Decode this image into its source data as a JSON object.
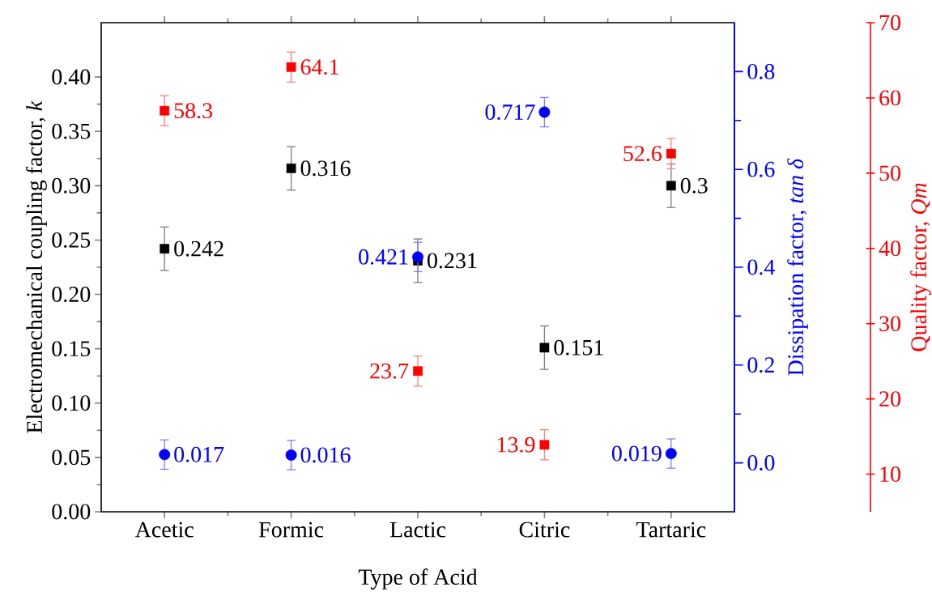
{
  "chart_data": {
    "type": "scatter",
    "xlabel": "Type of Acid",
    "ylabel": "Electromechanical coupling factor, *k*",
    "y2label": "Dissipation factor, *tan δ*",
    "y3label": "Quality factor, *Qm*",
    "categories": [
      "Acetic",
      "Formic",
      "Lactic",
      "Citric",
      "Tartaric"
    ],
    "ylim": [
      0,
      0.45
    ],
    "yticks": [
      {
        "value": 0,
        "label": "0.00"
      },
      {
        "value": 0.05,
        "label": "0.05"
      },
      {
        "value": 0.1,
        "label": "0.10"
      },
      {
        "value": 0.15,
        "label": "0.15"
      },
      {
        "value": 0.2,
        "label": "0.20"
      },
      {
        "value": 0.25,
        "label": "0.25"
      },
      {
        "value": 0.3,
        "label": "0.30"
      },
      {
        "value": 0.35,
        "label": "0.35"
      },
      {
        "value": 0.4,
        "label": "0.40"
      }
    ],
    "y2lim": [
      -0.1,
      0.9
    ],
    "y2ticks": [
      {
        "value": 0,
        "label": "0.0"
      },
      {
        "value": 0.2,
        "label": "0.2"
      },
      {
        "value": 0.4,
        "label": "0.4"
      },
      {
        "value": 0.6,
        "label": "0.6"
      },
      {
        "value": 0.8,
        "label": "0.8"
      }
    ],
    "y3lim": [
      5,
      70
    ],
    "y3ticks": [
      10,
      20,
      30,
      40,
      50,
      60,
      70
    ],
    "grid": false,
    "series": [
      {
        "color": "#000000",
        "marker": "square",
        "values": [
          0.242,
          0.316,
          0.231,
          0.151,
          0.3
        ],
        "errors": [
          0.02,
          0.02,
          0.02,
          0.02,
          0.02
        ],
        "value_labels": [
          "0.242",
          "0.316",
          "0.231",
          "0.151",
          "0.3"
        ]
      },
      {
        "color": "#0000ff",
        "marker": "circle",
        "axis": "y2",
        "values": [
          0.017,
          0.016,
          0.421,
          0.717,
          0.019
        ],
        "errors": [
          0.03,
          0.03,
          0.03,
          0.03,
          0.03
        ],
        "value_labels": [
          "0.017",
          "0.016",
          "0.421",
          "0.717",
          "0.019"
        ]
      },
      {
        "color": "#ff0000",
        "marker": "square",
        "axis": "y3",
        "values": [
          58.3,
          64.1,
          23.7,
          13.9,
          52.6
        ],
        "errors": [
          2,
          2,
          2,
          2,
          2
        ],
        "value_labels": [
          "58.3",
          "64.1",
          "23.7",
          "13.9",
          "52.6"
        ]
      }
    ]
  }
}
